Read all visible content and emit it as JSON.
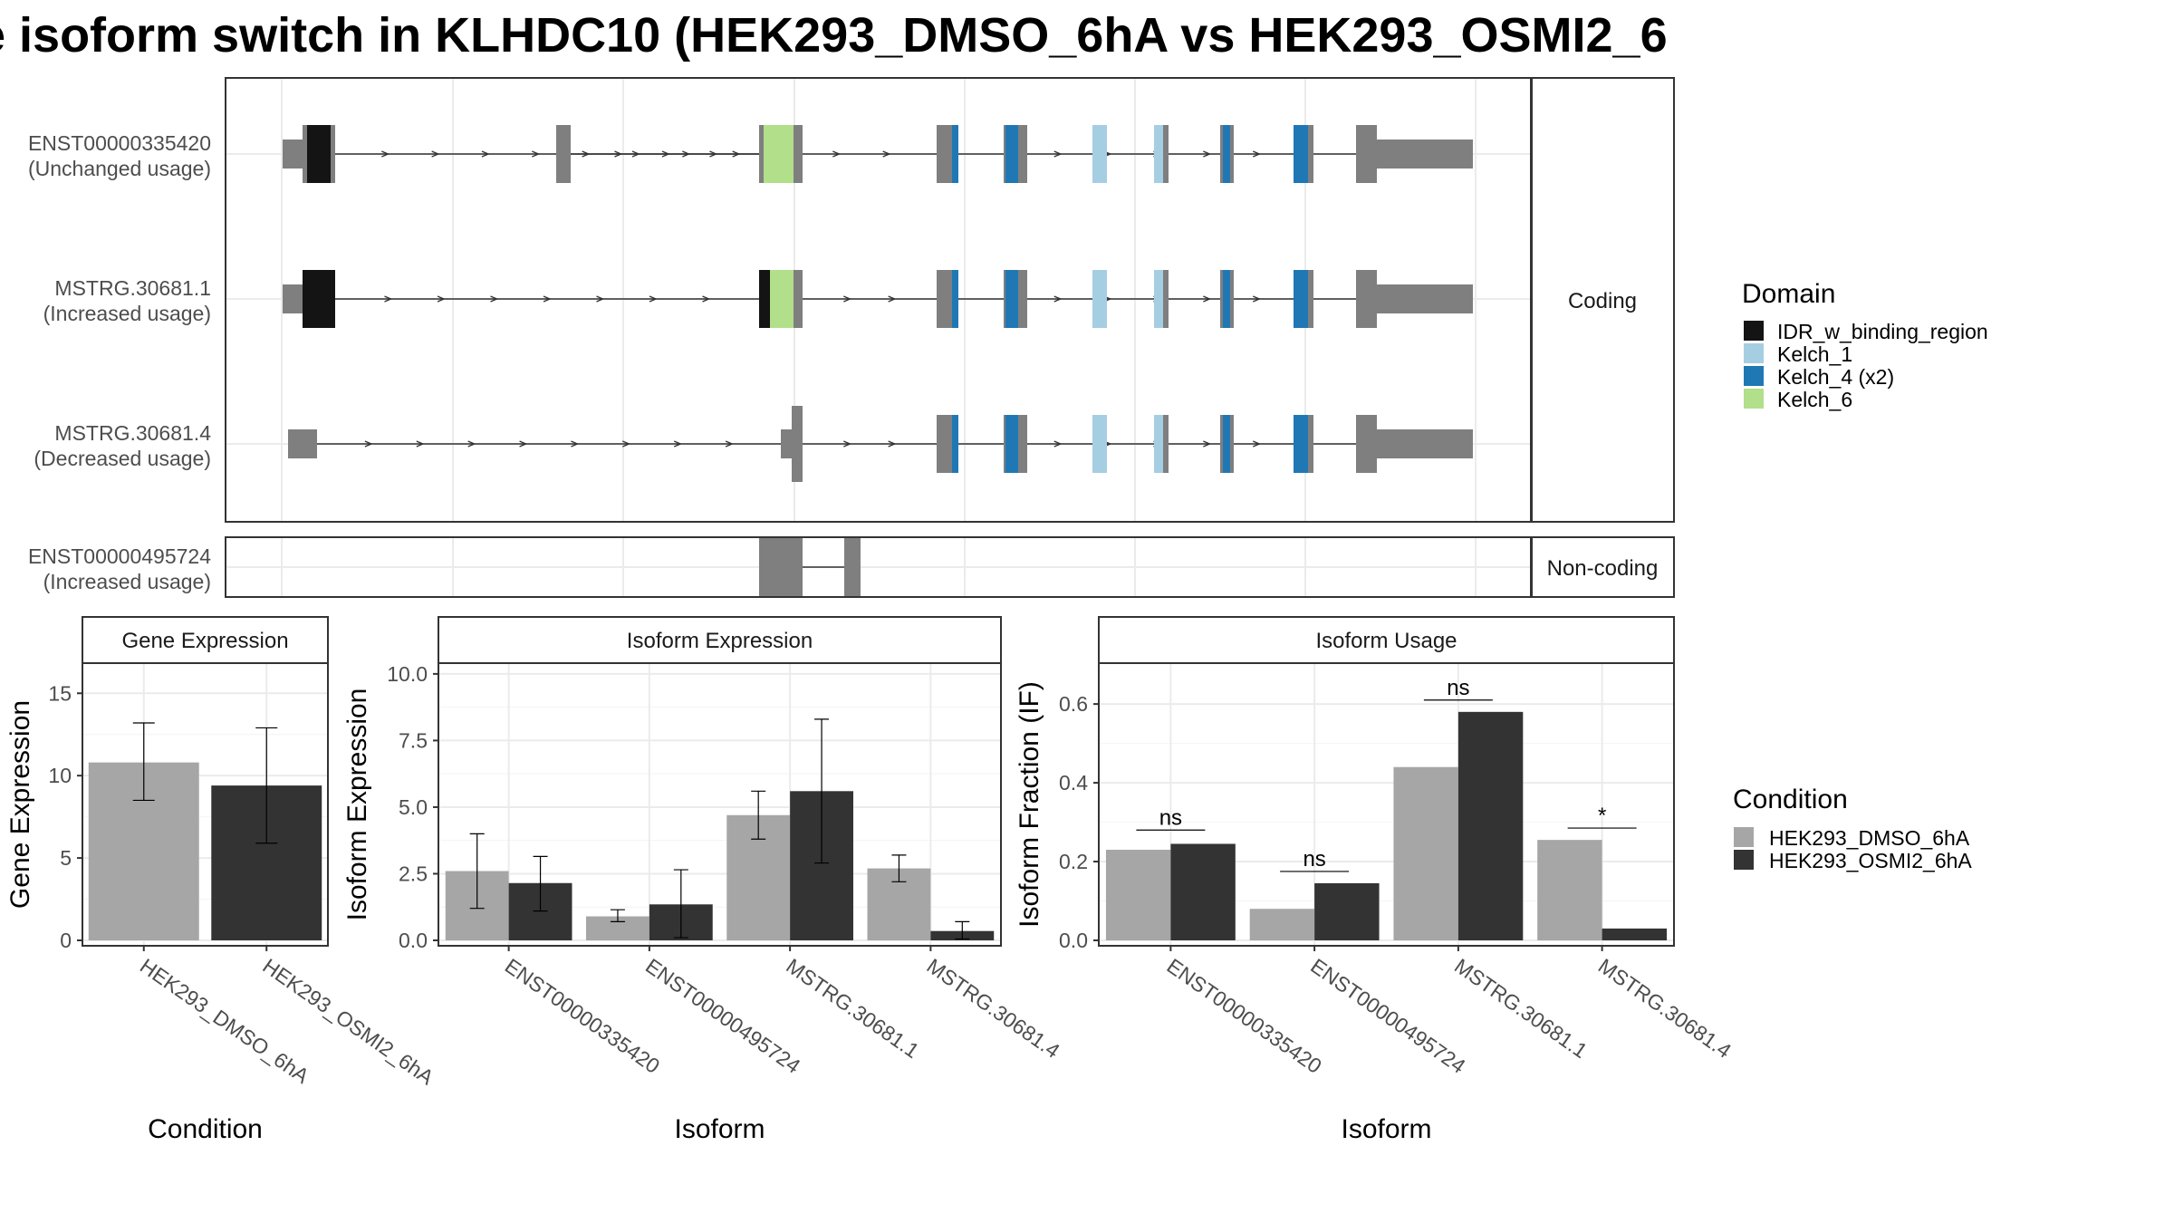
{
  "title": "e isoform switch in KLHDC10 (HEK293_DMSO_6hA vs HEK293_OSMI2_6",
  "colors": {
    "exon": "#7f7f7f",
    "IDR_w_binding_region": "#141414",
    "Kelch_1": "#a6cee3",
    "Kelch_4 (x2)": "#1f78b4",
    "Kelch_6": "#b2df8a",
    "cond1": "#a6a6a6",
    "cond2": "#333333"
  },
  "structure": {
    "coding_strip": "Coding",
    "noncoding_strip": "Non-coding",
    "transcripts": [
      {
        "id": "ENST00000335420",
        "usage": "(Unchanged usage)",
        "group": "coding"
      },
      {
        "id": "MSTRG.30681.1",
        "usage": "(Increased usage)",
        "group": "coding"
      },
      {
        "id": "MSTRG.30681.4",
        "usage": "(Decreased usage)",
        "group": "coding"
      },
      {
        "id": "ENST00000495724",
        "usage": "(Increased usage)",
        "group": "noncoding"
      }
    ]
  },
  "legend_domain": {
    "title": "Domain",
    "items": [
      "IDR_w_binding_region",
      "Kelch_1",
      "Kelch_4 (x2)",
      "Kelch_6"
    ]
  },
  "legend_condition": {
    "title": "Condition",
    "items": [
      "HEK293_DMSO_6hA",
      "HEK293_OSMI2_6hA"
    ]
  },
  "chart_data": [
    {
      "type": "bar",
      "title": "Gene Expression",
      "xlabel": "Condition",
      "ylabel": "Gene Expression",
      "ylim": [
        0,
        16.5
      ],
      "yticks": [
        0,
        5,
        10,
        15
      ],
      "categories": [
        "HEK293_DMSO_6hA",
        "HEK293_OSMI2_6hA"
      ],
      "values": [
        10.8,
        9.4
      ],
      "errors": [
        [
          8.5,
          13.2
        ],
        [
          5.9,
          12.9
        ]
      ]
    },
    {
      "type": "bar",
      "title": "Isoform Expression",
      "xlabel": "Isoform",
      "ylabel": "Isoform Expression",
      "ylim": [
        0,
        10.2
      ],
      "yticks": [
        0.0,
        2.5,
        5.0,
        7.5,
        10.0
      ],
      "categories": [
        "ENST00000335420",
        "ENST00000495724",
        "MSTRG.30681.1",
        "MSTRG.30681.4"
      ],
      "series": [
        {
          "name": "HEK293_DMSO_6hA",
          "values": [
            2.6,
            0.9,
            4.7,
            2.7
          ],
          "errors": [
            [
              1.2,
              4.0
            ],
            [
              0.7,
              1.15
            ],
            [
              3.8,
              5.6
            ],
            [
              2.2,
              3.2
            ]
          ]
        },
        {
          "name": "HEK293_OSMI2_6hA",
          "values": [
            2.15,
            1.35,
            5.6,
            0.35
          ],
          "errors": [
            [
              1.1,
              3.15
            ],
            [
              0.1,
              2.65
            ],
            [
              2.9,
              8.3
            ],
            [
              0.05,
              0.7
            ]
          ]
        }
      ]
    },
    {
      "type": "bar",
      "title": "Isoform Usage",
      "xlabel": "Isoform",
      "ylabel": "Isoform Fraction (IF)",
      "ylim": [
        0,
        0.69
      ],
      "yticks": [
        0.0,
        0.2,
        0.4,
        0.6
      ],
      "categories": [
        "ENST00000335420",
        "ENST00000495724",
        "MSTRG.30681.1",
        "MSTRG.30681.4"
      ],
      "series": [
        {
          "name": "HEK293_DMSO_6hA",
          "values": [
            0.23,
            0.08,
            0.44,
            0.255
          ]
        },
        {
          "name": "HEK293_OSMI2_6hA",
          "values": [
            0.245,
            0.145,
            0.58,
            0.03
          ]
        }
      ],
      "significance": [
        {
          "label": "ns",
          "y": 0.28
        },
        {
          "label": "ns",
          "y": 0.175
        },
        {
          "label": "ns",
          "y": 0.61
        },
        {
          "label": "*",
          "y": 0.285
        }
      ]
    }
  ]
}
